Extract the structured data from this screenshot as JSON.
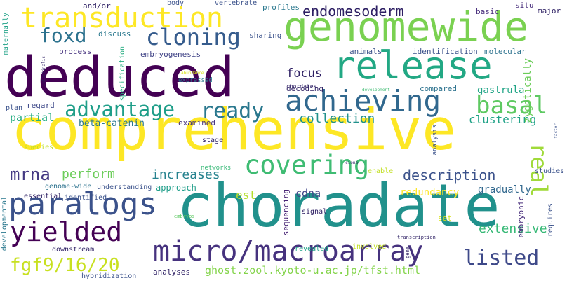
{
  "words": [
    {
      "text": "comprehensive",
      "color": "#fde725"
    },
    {
      "text": "choradate",
      "color": "#21918c"
    },
    {
      "text": "deduced",
      "color": "#440154"
    },
    {
      "text": "genomewide",
      "color": "#7ad151"
    },
    {
      "text": "release",
      "color": "#22a884"
    },
    {
      "text": "transduction",
      "color": "#fde725"
    },
    {
      "text": "micro/macroarray",
      "color": "#46327e"
    },
    {
      "text": "achieving",
      "color": "#31688e"
    },
    {
      "text": "covering",
      "color": "#3fbc73"
    },
    {
      "text": "paralogs",
      "color": "#3b528b"
    },
    {
      "text": "yielded",
      "color": "#440154"
    },
    {
      "text": "cloning",
      "color": "#365c8d"
    },
    {
      "text": "advantage",
      "color": "#1f9e89"
    },
    {
      "text": "ready",
      "color": "#2a788e"
    },
    {
      "text": "endomesoderm",
      "color": "#2d1f63"
    },
    {
      "text": "foxd",
      "color": "#2c728e"
    },
    {
      "text": "basal",
      "color": "#5ec962"
    },
    {
      "text": "real",
      "color": "#a0da39"
    },
    {
      "text": "listed",
      "color": "#3e4989"
    },
    {
      "text": "fgf9/16/20",
      "color": "#c8e020"
    },
    {
      "text": "mrna",
      "color": "#443983"
    },
    {
      "text": "description",
      "color": "#3b528b"
    },
    {
      "text": "increases",
      "color": "#26828e"
    },
    {
      "text": "perform",
      "color": "#6ccd5a"
    },
    {
      "text": "collection",
      "color": "#21918c"
    },
    {
      "text": "extensive",
      "color": "#38b977"
    },
    {
      "text": "focus",
      "color": "#2d1f63"
    },
    {
      "text": "clustering",
      "color": "#1fa287"
    },
    {
      "text": "ghost.zool.kyoto-u.ac.jp/tfst.html",
      "color": "#84d44b"
    },
    {
      "text": "beta-catenin",
      "color": "#2a788e"
    },
    {
      "text": "partial",
      "color": "#26ad81"
    },
    {
      "text": "gastrula",
      "color": "#20a486"
    },
    {
      "text": "zygotically",
      "color": "#6ccd5a"
    },
    {
      "text": "gradually",
      "color": "#31688e"
    },
    {
      "text": "embryonic",
      "color": "#472d7b"
    },
    {
      "text": "redundancy",
      "color": "#fde725"
    },
    {
      "text": "est",
      "color": "#b5de2b"
    },
    {
      "text": "cdna",
      "color": "#404688"
    },
    {
      "text": "approach",
      "color": "#1f9e89"
    },
    {
      "text": "decoding",
      "color": "#2d1f63"
    },
    {
      "text": "compared",
      "color": "#2c728e"
    },
    {
      "text": "examined",
      "color": "#46327e"
    },
    {
      "text": "regard",
      "color": "#3e4989"
    },
    {
      "text": "discuss",
      "color": "#2a788e"
    },
    {
      "text": "sharing",
      "color": "#3b528b"
    },
    {
      "text": "embryogenesis",
      "color": "#414487"
    },
    {
      "text": "process",
      "color": "#46327e"
    },
    {
      "text": "animals",
      "color": "#3b528b"
    },
    {
      "text": "identification",
      "color": "#3b528b"
    },
    {
      "text": "molecular",
      "color": "#2c728e"
    },
    {
      "text": "profiles",
      "color": "#2a788e"
    },
    {
      "text": "basic",
      "color": "#472d7b"
    },
    {
      "text": "situ",
      "color": "#472d7b"
    },
    {
      "text": "major",
      "color": "#2d1f63"
    },
    {
      "text": "and/or",
      "color": "#2d1f63"
    },
    {
      "text": "body",
      "color": "#3b528b"
    },
    {
      "text": "vertebrate",
      "color": "#3b528b"
    },
    {
      "text": "maternally",
      "color": "#1fa287"
    },
    {
      "text": "specification",
      "color": "#26ad81"
    },
    {
      "text": "plan",
      "color": "#3b528b"
    },
    {
      "text": "species",
      "color": "#c2df23"
    },
    {
      "text": "stage",
      "color": "#2d1f63"
    },
    {
      "text": "networks",
      "color": "#38b977"
    },
    {
      "text": "understanding",
      "color": "#3b528b"
    },
    {
      "text": "genome-wide",
      "color": "#2c728e"
    },
    {
      "text": "essential",
      "color": "#2d1f63"
    },
    {
      "text": "identified",
      "color": "#3b528b"
    },
    {
      "text": "developmental",
      "color": "#2a788e"
    },
    {
      "text": "downstream",
      "color": "#2d1f63"
    },
    {
      "text": "hybridization",
      "color": "#3b528b"
    },
    {
      "text": "analyses",
      "color": "#2d1f63"
    },
    {
      "text": "sequencing",
      "color": "#482475"
    },
    {
      "text": "signal",
      "color": "#2d1f63"
    },
    {
      "text": "embryos",
      "color": "#5ec962"
    },
    {
      "text": "revealed",
      "color": "#1fa287"
    },
    {
      "text": "involved",
      "color": "#c2df23"
    },
    {
      "text": "transcription",
      "color": "#2d1f63"
    },
    {
      "text": "gene",
      "color": "#2d1f63"
    },
    {
      "text": "set",
      "color": "#d8e219"
    },
    {
      "text": "requires",
      "color": "#3b528b"
    },
    {
      "text": "studies",
      "color": "#3b528b"
    },
    {
      "text": "enable",
      "color": "#c2df23"
    },
    {
      "text": "analysis",
      "color": "#3b528b"
    },
    {
      "text": "expressed",
      "color": "#2a788e"
    },
    {
      "text": "intestinalis",
      "color": "#2d1f63"
    },
    {
      "text": "chordates",
      "color": "#2d1f63"
    },
    {
      "text": "development",
      "color": "#3fbc73"
    },
    {
      "text": "ciona",
      "color": "#2d1f63"
    },
    {
      "text": "factor",
      "color": "#3b528b"
    },
    {
      "text": "abundance",
      "color": "#d8e219"
    }
  ]
}
